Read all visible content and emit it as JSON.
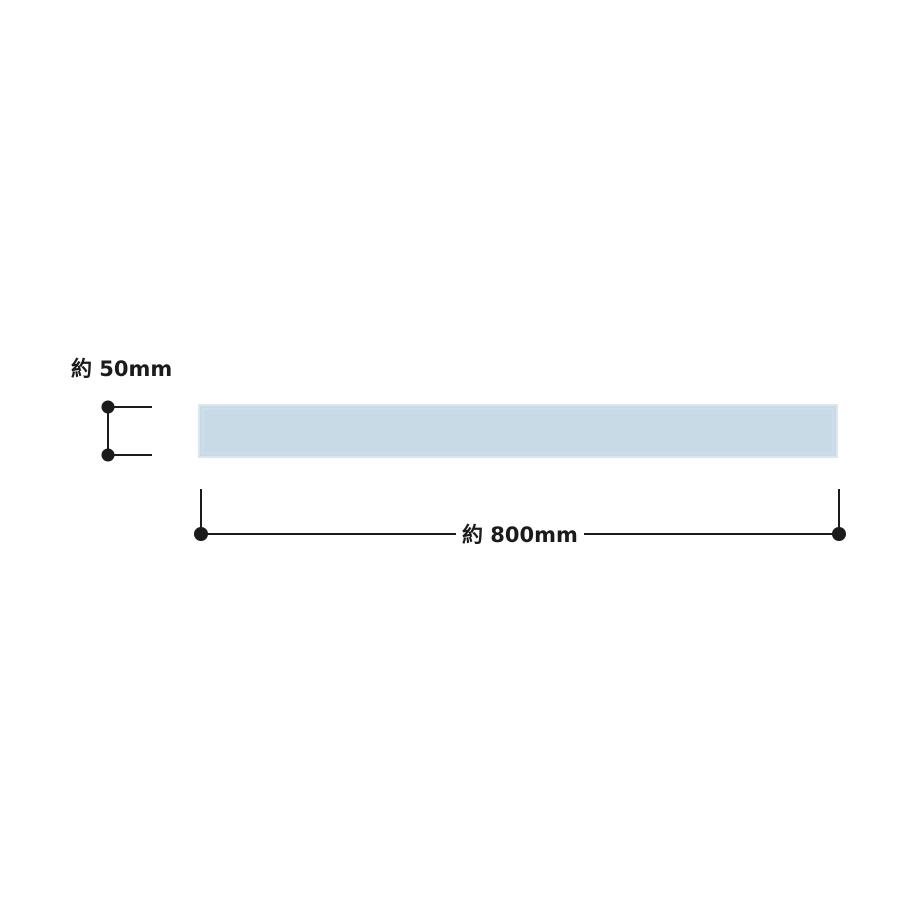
{
  "diagram": {
    "height_label": "約 50mm",
    "width_label": "約 800mm",
    "colors": {
      "bar_fill": "#c8dae6",
      "bar_edge": "#d8e6ef",
      "line": "#1b1b1b",
      "background": "#ffffff"
    }
  }
}
